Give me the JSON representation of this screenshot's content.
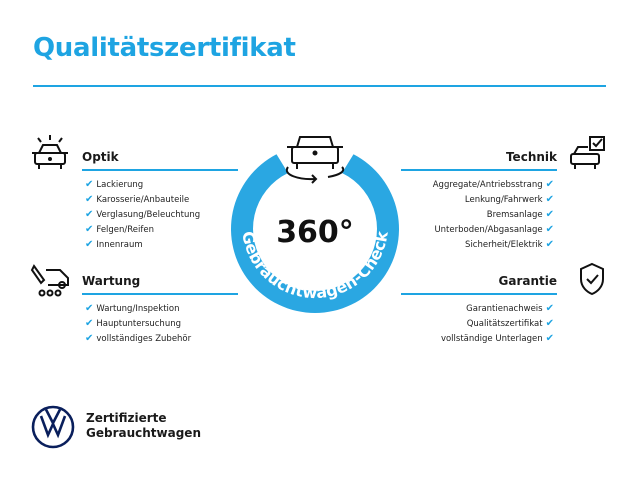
{
  "title": "Qualitätszertifikat",
  "center": {
    "value": "360°",
    "ring_text": "Gebrauchtwagen-Check"
  },
  "sections": {
    "optik": {
      "heading": "Optik",
      "items": [
        "Lackierung",
        "Karosserie/Anbauteile",
        "Verglasung/Beleuchtung",
        "Felgen/Reifen",
        "Innenraum"
      ]
    },
    "wartung": {
      "heading": "Wartung",
      "items": [
        "Wartung/Inspektion",
        "Hauptuntersuchung",
        "vollständiges Zubehör"
      ]
    },
    "technik": {
      "heading": "Technik",
      "items": [
        "Aggregate/Antriebsstrang",
        "Lenkung/Fahrwerk",
        "Bremsanlage",
        "Unterboden/Abgasanlage",
        "Sicherheit/Elektrik"
      ]
    },
    "garantie": {
      "heading": "Garantie",
      "items": [
        "Garantienachweis",
        "Qualitätszertifikat",
        "vollständige Unterlagen"
      ]
    }
  },
  "check_symbol": "✔",
  "footer": {
    "line1": "Zertifizierte",
    "line2": "Gebrauchtwagen"
  },
  "colors": {
    "accent": "#1ea4e2",
    "logo": "#0a1f5c"
  }
}
